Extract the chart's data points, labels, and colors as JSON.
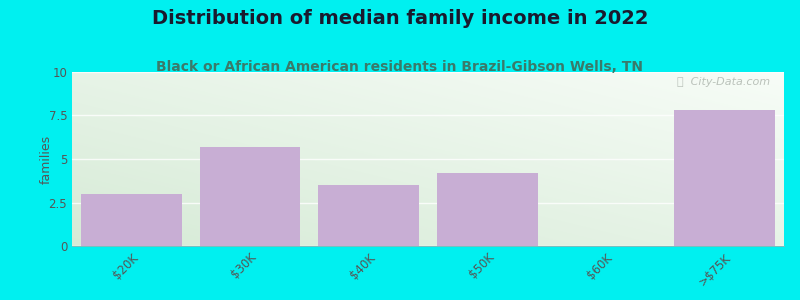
{
  "title": "Distribution of median family income in 2022",
  "subtitle": "Black or African American residents in Brazil-Gibson Wells, TN",
  "categories": [
    "$20K",
    "$30K",
    "$40K",
    "$50K",
    "$60K",
    ">$75K"
  ],
  "values": [
    3,
    5.7,
    3.5,
    4.2,
    0,
    7.8
  ],
  "bar_color": "#c8aed4",
  "bar_edge_color": "#c8aed4",
  "ylabel": "families",
  "ylim": [
    0,
    10
  ],
  "yticks": [
    0,
    2.5,
    5,
    7.5,
    10
  ],
  "background_outer": "#00f0f0",
  "background_inner_top": "#f5f8f0",
  "background_inner_bottom": "#ddeedd",
  "title_color": "#1a1a2e",
  "subtitle_color": "#3a7a6a",
  "title_fontsize": 14,
  "subtitle_fontsize": 10,
  "watermark_text": "ⓘ  City-Data.com",
  "watermark_color": "#b0b8b0"
}
